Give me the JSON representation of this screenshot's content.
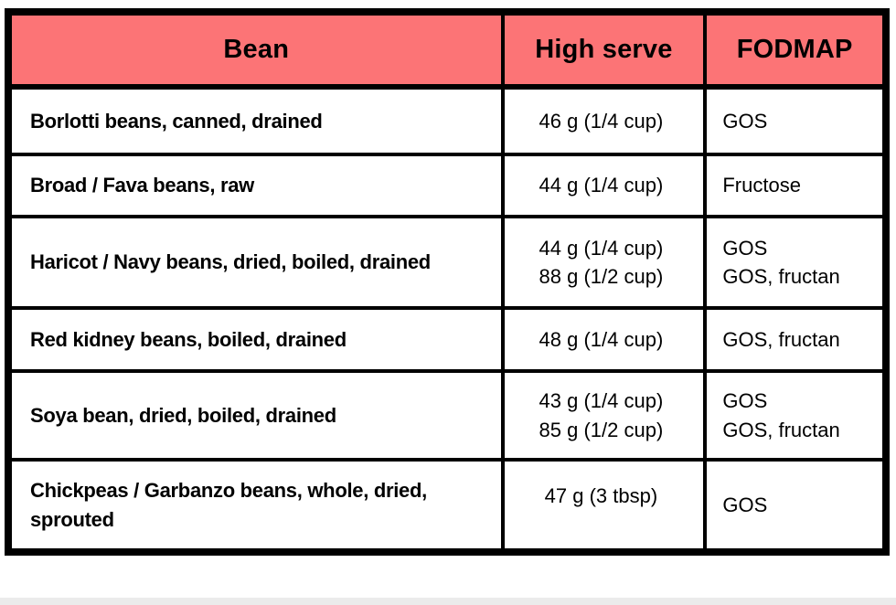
{
  "colors": {
    "header_bg": "#FC7476",
    "border": "#000000",
    "text": "#000000",
    "page_bg": "#FFFFFF",
    "bottom_strip": "#EBEBEB"
  },
  "chart_data": {
    "type": "table",
    "columns": [
      "Bean",
      "High serve",
      "FODMAP"
    ],
    "rows": [
      {
        "bean": "Borlotti beans, canned, drained",
        "high_serve": [
          "46 g (1/4 cup)"
        ],
        "fodmap": [
          "GOS"
        ]
      },
      {
        "bean": "Broad / Fava beans, raw",
        "high_serve": [
          "44 g (1/4 cup)"
        ],
        "fodmap": [
          "Fructose"
        ]
      },
      {
        "bean": "Haricot / Navy beans, dried, boiled, drained",
        "high_serve": [
          "44 g (1/4 cup)",
          "88 g (1/2 cup)"
        ],
        "fodmap": [
          "GOS",
          "GOS, fructan"
        ]
      },
      {
        "bean": "Red kidney beans, boiled, drained",
        "high_serve": [
          "48 g (1/4 cup)"
        ],
        "fodmap": [
          "GOS, fructan"
        ]
      },
      {
        "bean": "Soya bean, dried, boiled, drained",
        "high_serve": [
          "43 g (1/4 cup)",
          "85 g (1/2 cup)"
        ],
        "fodmap": [
          "GOS",
          "GOS, fructan"
        ]
      },
      {
        "bean": "Chickpeas / Garbanzo beans, whole, dried, sprouted",
        "high_serve": [
          "47 g (3 tbsp)"
        ],
        "fodmap": [
          "GOS"
        ]
      }
    ]
  }
}
